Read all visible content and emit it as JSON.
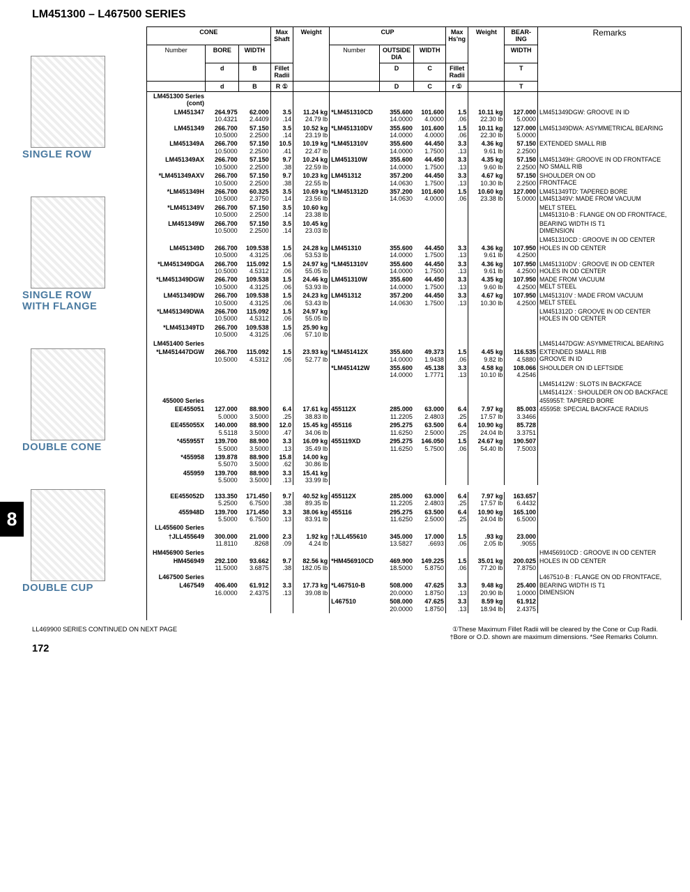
{
  "page_title": "LM451300 – L467500 SERIES",
  "side_tab": "8",
  "page_num": "172",
  "footer_left": "LL469900 SERIES CONTINUED ON NEXT PAGE",
  "footer_right": "①These Maximum Fillet Radii will be cleared by the Cone or Cup Radii.\n†Bore or O.D. shown are maximum dimensions.  *See Remarks Column.",
  "labels": {
    "single_row": "SINGLE ROW",
    "single_row_flange": "SINGLE ROW\nWITH FLANGE",
    "double_cone": "DOUBLE CONE",
    "double_cup": "DOUBLE CUP"
  },
  "headers": {
    "cone": "CONE",
    "cup": "CUP",
    "bearing": "BEAR-\nING",
    "number": "Number",
    "bore": "BORE",
    "width": "WIDTH",
    "max_shaft": "Max\nShaft",
    "fillet_radii": "Fillet\nRadii",
    "r": "R ①",
    "weight": "Weight",
    "outside_dia": "OUTSIDE\nDIA",
    "max_hsng": "Max\nHs'ng",
    "r2": "r ①",
    "d": "d",
    "B": "B",
    "D": "D",
    "C": "C",
    "T": "T",
    "remarks": "Remarks"
  },
  "rows": [
    {
      "sec": "top",
      "n": "LM451300 Series (cont)"
    },
    {
      "n": "LM451347",
      "d1": "264.975",
      "d2": "10.4321",
      "b1": "62.000",
      "b2": "2.4409",
      "r1": "3.5",
      "r2": ".14",
      "w1": "11.24 kg",
      "w2": "24.79 lb",
      "cn": "*LM451310CD",
      "od1": "355.600",
      "od2": "14.0000",
      "cw1": "101.600",
      "cw2": "4.0000",
      "hr1": "1.5",
      "hr2": ".06",
      "wt1": "10.11 kg",
      "wt2": "22.30 lb",
      "t1": "127.000",
      "t2": "5.0000",
      "rem": "LM451349DGW: GROOVE IN ID"
    },
    {
      "n": "LM451349",
      "d1": "266.700",
      "d2": "10.5000",
      "b1": "57.150",
      "b2": "2.2500",
      "r1": "3.5",
      "r2": ".14",
      "w1": "10.52 kg",
      "w2": "23.19 lb",
      "cn": "*LM451310DV",
      "od1": "355.600",
      "od2": "14.0000",
      "cw1": "101.600",
      "cw2": "4.0000",
      "hr1": "1.5",
      "hr2": ".06",
      "wt1": "10.11 kg",
      "wt2": "22.30 lb",
      "t1": "127.000",
      "t2": "5.0000",
      "rem": "LM451349DWA: ASYMMETRICAL BEARING"
    },
    {
      "n": "LM451349A",
      "d1": "266.700",
      "d2": "10.5000",
      "b1": "57.150",
      "b2": "2.2500",
      "r1": "10.5",
      "r2": ".41",
      "w1": "10.19 kg",
      "w2": "22.47 lb",
      "cn": "*LM451310V",
      "od1": "355.600",
      "od2": "14.0000",
      "cw1": "44.450",
      "cw2": "1.7500",
      "hr1": "3.3",
      "hr2": ".13",
      "wt1": "4.36 kg",
      "wt2": "9.61 lb",
      "t1": "57.150",
      "t2": "2.2500",
      "rem": "EXTENDED SMALL RIB"
    },
    {
      "n": "LM451349AX",
      "d1": "266.700",
      "d2": "10.5000",
      "b1": "57.150",
      "b2": "2.2500",
      "r1": "9.7",
      "r2": ".38",
      "w1": "10.24 kg",
      "w2": "22.59 lb",
      "cn": "LM451310W",
      "od1": "355.600",
      "od2": "14.0000",
      "cw1": "44.450",
      "cw2": "1.7500",
      "hr1": "3.3",
      "hr2": ".13",
      "wt1": "4.35 kg",
      "wt2": "9.60 lb",
      "t1": "57.150",
      "t2": "2.2500",
      "rem": "LM451349H: GROOVE IN OD FRONTFACE\nNO SMALL RIB"
    },
    {
      "n": "*LM451349AXV",
      "d1": "266.700",
      "d2": "10.5000",
      "b1": "57.150",
      "b2": "2.2500",
      "r1": "9.7",
      "r2": ".38",
      "w1": "10.23 kg",
      "w2": "22.55 lb",
      "cn": "LM451312",
      "od1": "357.200",
      "od2": "14.0630",
      "cw1": "44.450",
      "cw2": "1.7500",
      "hr1": "3.3",
      "hr2": ".13",
      "wt1": "4.67 kg",
      "wt2": "10.30 lb",
      "t1": "57.150",
      "t2": "2.2500",
      "rem": "SHOULDER ON OD\nFRONTFACE"
    },
    {
      "n": "*LM451349H",
      "d1": "266.700",
      "d2": "10.5000",
      "b1": "60.325",
      "b2": "2.3750",
      "r1": "3.5",
      "r2": ".14",
      "w1": "10.69 kg",
      "w2": "23.56 lb",
      "cn": "*LM451312D",
      "od1": "357.200",
      "od2": "14.0630",
      "cw1": "101.600",
      "cw2": "4.0000",
      "hr1": "1.5",
      "hr2": ".06",
      "wt1": "10.60 kg",
      "wt2": "23.38 lb",
      "t1": "127.000",
      "t2": "5.0000",
      "rem": "LM451349TD: TAPERED BORE\nLM451349V: MADE FROM VACUUM"
    },
    {
      "n": "*LM451349V",
      "d1": "266.700",
      "d2": "10.5000",
      "b1": "57.150",
      "b2": "2.2500",
      "r1": "3.5",
      "r2": ".14",
      "w1": "10.60 kg",
      "w2": "23.38 lb",
      "rem": "MELT STEEL\nLM451310-B : FLANGE ON OD FRONTFACE,"
    },
    {
      "n": "LM451349W",
      "d1": "266.700",
      "d2": "10.5000",
      "b1": "57.150",
      "b2": "2.2500",
      "r1": "3.5",
      "r2": ".14",
      "w1": "10.45 kg",
      "w2": "23.03 lb",
      "rem": "BEARING WIDTH IS T1\nDIMENSION"
    },
    {
      "rem": "LM451310CD : GROOVE IN OD CENTER"
    },
    {
      "n": "LM451349D",
      "d1": "266.700",
      "d2": "10.5000",
      "b1": "109.538",
      "b2": "4.3125",
      "r1": "1.5",
      "r2": ".06",
      "w1": "24.28 kg",
      "w2": "53.53 lb",
      "cn": "LM451310",
      "od1": "355.600",
      "od2": "14.0000",
      "cw1": "44.450",
      "cw2": "1.7500",
      "hr1": "3.3",
      "hr2": ".13",
      "wt1": "4.36 kg",
      "wt2": "9.61 lb",
      "t1": "107.950",
      "t2": "4.2500",
      "rem": "HOLES IN OD CENTER"
    },
    {
      "n": "*LM451349DGA",
      "d1": "266.700",
      "d2": "10.5000",
      "b1": "115.092",
      "b2": "4.5312",
      "r1": "1.5",
      "r2": ".06",
      "w1": "24.97 kg",
      "w2": "55.05 lb",
      "cn": "*LM451310V",
      "od1": "355.600",
      "od2": "14.0000",
      "cw1": "44.450",
      "cw2": "1.7500",
      "hr1": "3.3",
      "hr2": ".13",
      "wt1": "4.36 kg",
      "wt2": "9.61 lb",
      "t1": "107.950",
      "t2": "4.2500",
      "rem": "LM451310DV : GROOVE IN OD CENTER\nHOLES IN OD CENTER"
    },
    {
      "n": "*LM451349DGW",
      "d1": "266.700",
      "d2": "10.5000",
      "b1": "109.538",
      "b2": "4.3125",
      "r1": "1.5",
      "r2": ".06",
      "w1": "24.46 kg",
      "w2": "53.93 lb",
      "cn": "LM451310W",
      "od1": "355.600",
      "od2": "14.0000",
      "cw1": "44.450",
      "cw2": "1.7500",
      "hr1": "3.3",
      "hr2": ".13",
      "wt1": "4.35 kg",
      "wt2": "9.60 lb",
      "t1": "107.950",
      "t2": "4.2500",
      "rem": "MADE FROM VACUUM\nMELT STEEL"
    },
    {
      "n": "LM451349DW",
      "d1": "266.700",
      "d2": "10.5000",
      "b1": "109.538",
      "b2": "4.3125",
      "r1": "1.5",
      "r2": ".06",
      "w1": "24.23 kg",
      "w2": "53.43 lb",
      "cn": "LM451312",
      "od1": "357.200",
      "od2": "14.0630",
      "cw1": "44.450",
      "cw2": "1.7500",
      "hr1": "3.3",
      "hr2": ".13",
      "wt1": "4.67 kg",
      "wt2": "10.30 lb",
      "t1": "107.950",
      "t2": "4.2500",
      "rem": "LM451310V : MADE FROM VACUUM\nMELT STEEL"
    },
    {
      "n": "*LM451349DWA",
      "d1": "266.700",
      "d2": "10.5000",
      "b1": "115.092",
      "b2": "4.5312",
      "r1": "1.5",
      "r2": ".06",
      "w1": "24.97 kg",
      "w2": "55.05 lb",
      "rem": "LM451312D : GROOVE IN OD CENTER\nHOLES IN OD CENTER"
    },
    {
      "n": "*LM451349TD",
      "d1": "266.700",
      "d2": "10.5000",
      "b1": "109.538",
      "b2": "4.3125",
      "r1": "1.5",
      "r2": ".06",
      "w1": "25.90 kg",
      "w2": "57.10 lb"
    },
    {
      "sec": "top",
      "n": "LM451400 Series",
      "rem": "LM451447DGW: ASYMMETRICAL BEARING"
    },
    {
      "n": "*LM451447DGW",
      "d1": "266.700",
      "d2": "10.5000",
      "b1": "115.092",
      "b2": "4.5312",
      "r1": "1.5",
      "r2": ".06",
      "w1": "23.93 kg",
      "w2": "52.77 lb",
      "cn": "*LM451412X",
      "od1": "355.600",
      "od2": "14.0000",
      "cw1": "49.373",
      "cw2": "1.9438",
      "hr1": "1.5",
      "hr2": ".06",
      "wt1": "4.45 kg",
      "wt2": "9.82 lb",
      "t1": "116.535",
      "t2": "4.5880",
      "rem": "EXTENDED SMALL RIB\nGROOVE IN ID"
    },
    {
      "cn": "*LM451412W",
      "od1": "355.600",
      "od2": "14.0000",
      "cw1": "45.138",
      "cw2": "1.7771",
      "hr1": "3.3",
      "hr2": ".13",
      "wt1": "4.58 kg",
      "wt2": "10.10 lb",
      "t1": "108.066",
      "t2": "4.2546",
      "rem": "SHOULDER ON ID LEFTSIDE"
    },
    {
      "rem": "LM451412W : SLOTS IN BACKFACE"
    },
    {
      "rem": "LM451412X : SHOULDER ON OD BACKFACE"
    },
    {
      "sec": "top",
      "n": "455000 Series",
      "rem": "455955T: TAPERED BORE"
    },
    {
      "n": "EE455051",
      "d1": "127.000",
      "d2": "5.0000",
      "b1": "88.900",
      "b2": "3.5000",
      "r1": "6.4",
      "r2": ".25",
      "w1": "17.61 kg",
      "w2": "38.83 lb",
      "cn": "455112X",
      "od1": "285.000",
      "od2": "11.2205",
      "cw1": "63.000",
      "cw2": "2.4803",
      "hr1": "6.4",
      "hr2": ".25",
      "wt1": "7.97 kg",
      "wt2": "17.57 lb",
      "t1": "85.003",
      "t2": "3.3466",
      "rem": "455958: SPECIAL BACKFACE RADIUS"
    },
    {
      "n": "EE455055X",
      "d1": "140.000",
      "d2": "5.5118",
      "b1": "88.900",
      "b2": "3.5000",
      "r1": "12.0",
      "r2": ".47",
      "w1": "15.45 kg",
      "w2": "34.06 lb",
      "cn": "455116",
      "od1": "295.275",
      "od2": "11.6250",
      "cw1": "63.500",
      "cw2": "2.5000",
      "hr1": "6.4",
      "hr2": ".25",
      "wt1": "10.90 kg",
      "wt2": "24.04 lb",
      "t1": "85.728",
      "t2": "3.3751"
    },
    {
      "n": "*455955T",
      "d1": "139.700",
      "d2": "5.5000",
      "b1": "88.900",
      "b2": "3.5000",
      "r1": "3.3",
      "r2": ".13",
      "w1": "16.09 kg",
      "w2": "35.49 lb",
      "cn": "455119XD",
      "od1": "295.275",
      "od2": "11.6250",
      "cw1": "146.050",
      "cw2": "5.7500",
      "hr1": "1.5",
      "hr2": ".06",
      "wt1": "24.67 kg",
      "wt2": "54.40 lb",
      "t1": "190.507",
      "t2": "7.5003"
    },
    {
      "n": "*455958",
      "d1": "139.878",
      "d2": "5.5070",
      "b1": "88.900",
      "b2": "3.5000",
      "r1": "15.8",
      "r2": ".62",
      "w1": "14.00 kg",
      "w2": "30.86 lb"
    },
    {
      "n": "455959",
      "d1": "139.700",
      "d2": "5.5000",
      "b1": "88.900",
      "b2": "3.5000",
      "r1": "3.3",
      "r2": ".13",
      "w1": "15.41 kg",
      "w2": "33.99 lb"
    },
    {
      "spacer": true
    },
    {
      "n": "EE455052D",
      "d1": "133.350",
      "d2": "5.2500",
      "b1": "171.450",
      "b2": "6.7500",
      "r1": "9.7",
      "r2": ".38",
      "w1": "40.52 kg",
      "w2": "89.35 lb",
      "cn": "455112X",
      "od1": "285.000",
      "od2": "11.2205",
      "cw1": "63.000",
      "cw2": "2.4803",
      "hr1": "6.4",
      "hr2": ".25",
      "wt1": "7.97 kg",
      "wt2": "17.57 lb",
      "t1": "163.657",
      "t2": "6.4432"
    },
    {
      "n": "455948D",
      "d1": "139.700",
      "d2": "5.5000",
      "b1": "171.450",
      "b2": "6.7500",
      "r1": "3.3",
      "r2": ".13",
      "w1": "38.06 kg",
      "w2": "83.91 lb",
      "cn": "455116",
      "od1": "295.275",
      "od2": "11.6250",
      "cw1": "63.500",
      "cw2": "2.5000",
      "hr1": "6.4",
      "hr2": ".25",
      "wt1": "10.90 kg",
      "wt2": "24.04 lb",
      "t1": "165.100",
      "t2": "6.5000"
    },
    {
      "sec": "top",
      "n": "LL455600 Series"
    },
    {
      "n": "†JLL455649",
      "d1": "300.000",
      "d2": "11.8110",
      "b1": "21.000",
      "b2": ".8268",
      "r1": "2.3",
      "r2": ".09",
      "w1": "1.92 kg",
      "w2": "4.24 lb",
      "cn": "†JLL455610",
      "od1": "345.000",
      "od2": "13.5827",
      "cw1": "17.000",
      "cw2": ".6693",
      "hr1": "1.5",
      "hr2": ".06",
      "wt1": ".93 kg",
      "wt2": "2.05 lb",
      "t1": "23.000",
      "t2": ".9055"
    },
    {
      "sec": "top",
      "n": "HM456900 Series",
      "rem": "HM456910CD : GROOVE IN OD CENTER"
    },
    {
      "n": "HM456949",
      "d1": "292.100",
      "d2": "11.5000",
      "b1": "93.662",
      "b2": "3.6875",
      "r1": "9.7",
      "r2": ".38",
      "w1": "82.56 kg",
      "w2": "182.05 lb",
      "cn": "*HM456910CD",
      "od1": "469.900",
      "od2": "18.5000",
      "cw1": "149.225",
      "cw2": "5.8750",
      "hr1": "1.5",
      "hr2": ".06",
      "wt1": "35.01 kg",
      "wt2": "77.20 lb",
      "t1": "200.025",
      "t2": "7.8750",
      "rem": "HOLES IN OD CENTER"
    },
    {
      "sec": "top",
      "n": "L467500 Series",
      "rem": "L467510-B : FLANGE ON OD FRONTFACE,"
    },
    {
      "n": "L467549",
      "d1": "406.400",
      "d2": "16.0000",
      "b1": "61.912",
      "b2": "2.4375",
      "r1": "3.3",
      "r2": ".13",
      "w1": "17.73 kg",
      "w2": "39.08 lb",
      "cn": "*L467510-B",
      "od1": "508.000",
      "od2": "20.0000",
      "cw1": "47.625",
      "cw2": "1.8750",
      "hr1": "3.3",
      "hr2": ".13",
      "wt1": "9.48 kg",
      "wt2": "20.90 lb",
      "t1": "25.400",
      "t2": "1.0000",
      "rem": "BEARING WIDTH IS T1\nDIMENSION"
    },
    {
      "cn": "L467510",
      "od1": "508.000",
      "od2": "20.0000",
      "cw1": "47.625",
      "cw2": "1.8750",
      "hr1": "3.3",
      "hr2": ".13",
      "wt1": "8.59 kg",
      "wt2": "18.94 lb",
      "t1": "61.912",
      "t2": "2.4375"
    },
    {
      "spacer": true
    }
  ]
}
